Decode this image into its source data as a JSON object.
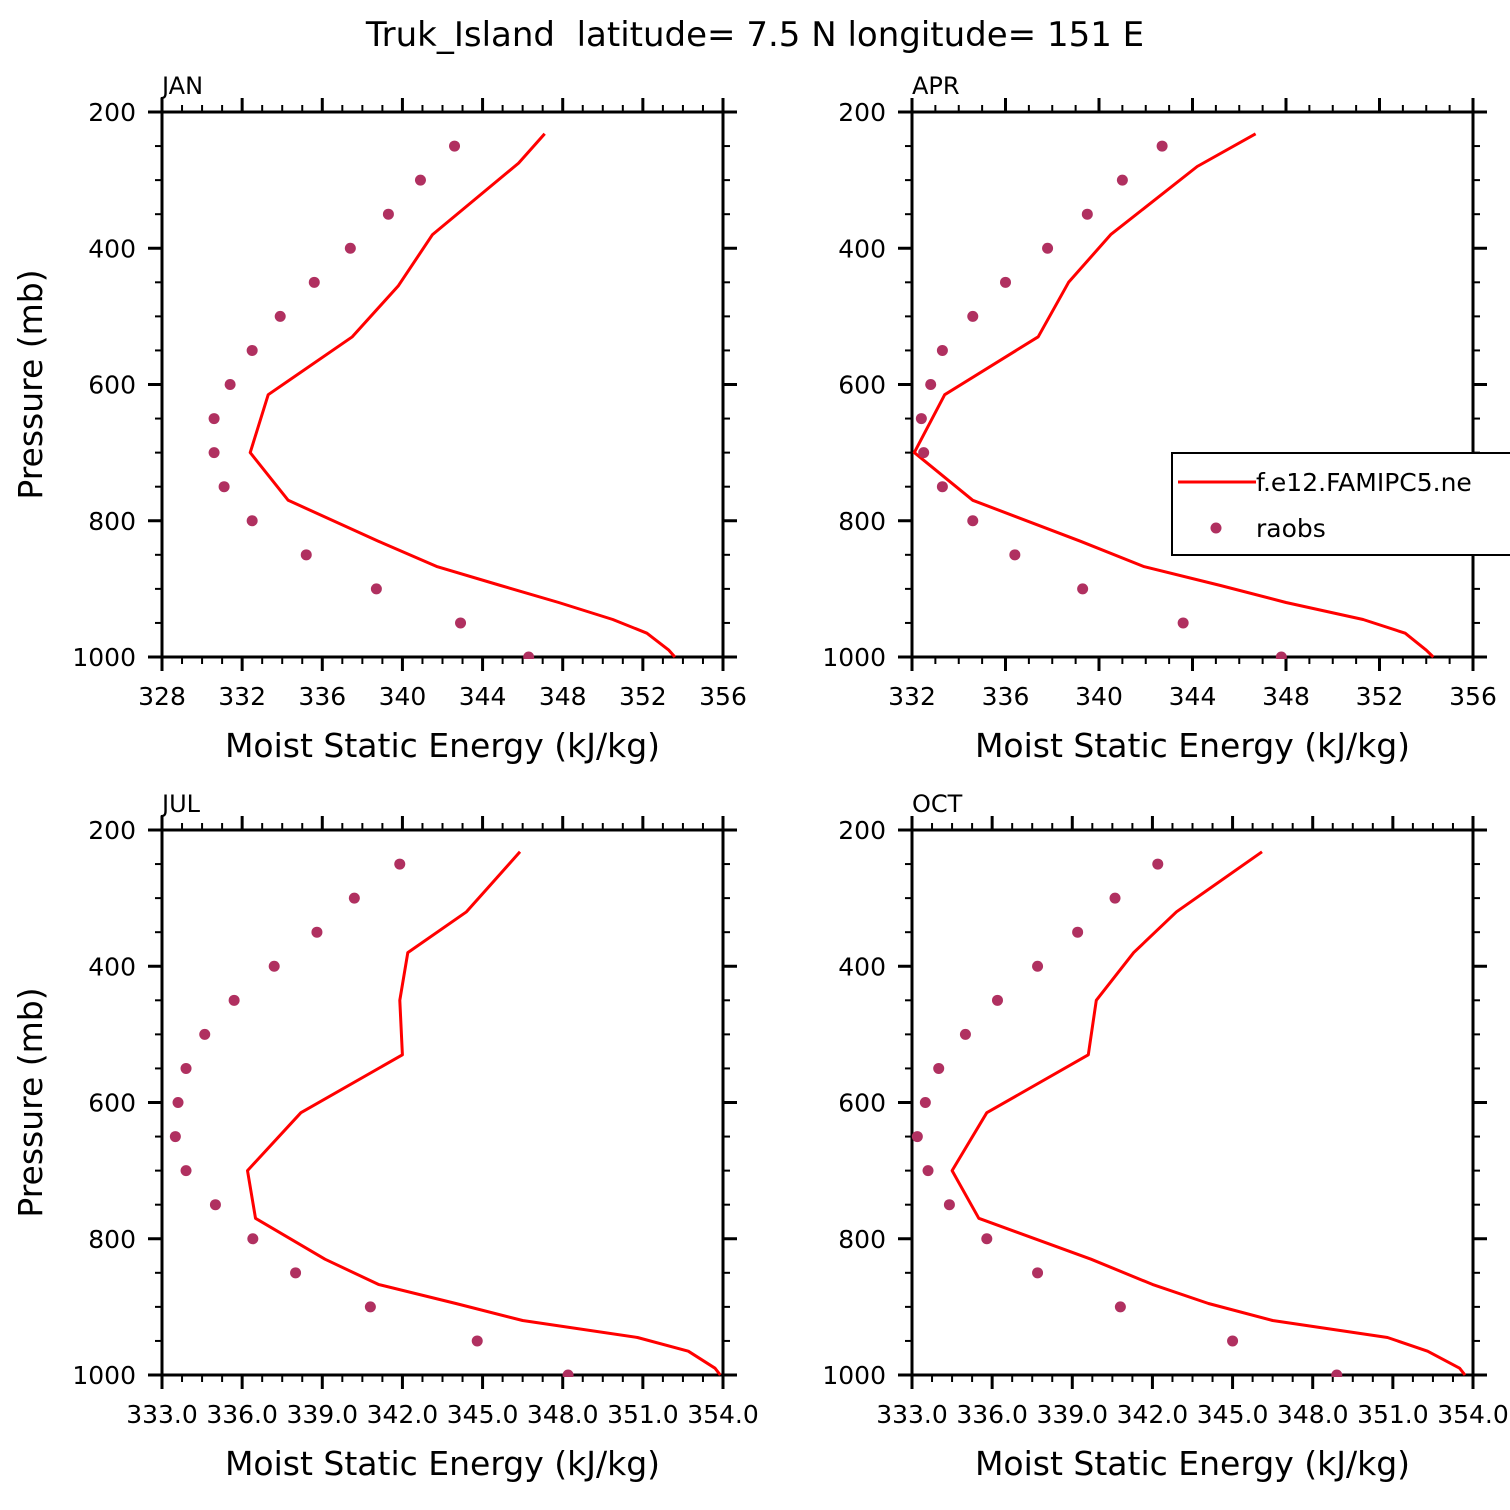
{
  "figure": {
    "title": "Truk_Island  latitude= 7.5 N longitude= 151 E"
  },
  "legend": {
    "model_label": "f.e12.FAMIPC5.ne",
    "obs_label": "raobs",
    "model_color": "#ff0000",
    "obs_color": "#b03060"
  },
  "chart_data": [
    {
      "type": "line",
      "title": "JAN",
      "xlabel": "Moist Static Energy (kJ/kg)",
      "ylabel": "Pressure (mb)",
      "xlim": [
        328,
        356
      ],
      "ylim": [
        1000,
        200
      ],
      "xticks": [
        328,
        332,
        336,
        340,
        344,
        348,
        352,
        356
      ],
      "xtick_labels": [
        "328",
        "332",
        "336",
        "340",
        "344",
        "348",
        "352",
        "356"
      ],
      "yticks": [
        200,
        400,
        600,
        800,
        1000
      ],
      "ytick_labels": [
        "200",
        "400",
        "600",
        "800",
        "1000"
      ],
      "series": [
        {
          "name": "f.e12.FAMIPC5.ne",
          "style": "line",
          "color": "#ff0000",
          "x": [
            353.6,
            353.3,
            352.2,
            350.5,
            347.8,
            344.9,
            341.7,
            338.8,
            334.3,
            332.4,
            333.3,
            337.5,
            339.8,
            341.5,
            345.8,
            347.1
          ],
          "y": [
            1000,
            990,
            965,
            945,
            920,
            895,
            867,
            830,
            770,
            700,
            615,
            530,
            455,
            380,
            275,
            232
          ]
        },
        {
          "name": "raobs",
          "style": "markers",
          "color": "#b03060",
          "x": [
            346.3,
            342.9,
            338.7,
            335.2,
            332.5,
            331.1,
            330.6,
            330.6,
            331.4,
            332.5,
            333.9,
            335.6,
            337.4,
            339.3,
            340.9,
            342.6
          ],
          "y": [
            1000,
            950,
            900,
            850,
            800,
            750,
            700,
            650,
            600,
            550,
            500,
            450,
            400,
            350,
            300,
            250
          ]
        }
      ]
    },
    {
      "type": "line",
      "title": "APR",
      "xlabel": "Moist Static Energy (kJ/kg)",
      "ylabel": "",
      "xlim": [
        332,
        356
      ],
      "ylim": [
        1000,
        200
      ],
      "xticks": [
        332,
        336,
        340,
        344,
        348,
        352,
        356
      ],
      "xtick_labels": [
        "332",
        "336",
        "340",
        "344",
        "348",
        "352",
        "356"
      ],
      "yticks": [
        200,
        400,
        600,
        800,
        1000
      ],
      "ytick_labels": [
        "200",
        "400",
        "600",
        "800",
        "1000"
      ],
      "series": [
        {
          "name": "f.e12.FAMIPC5.ne",
          "style": "line",
          "color": "#ff0000",
          "x": [
            354.3,
            354.0,
            353.1,
            351.3,
            348.0,
            345.2,
            341.9,
            339.2,
            334.6,
            332.1,
            333.4,
            337.4,
            338.7,
            340.5,
            344.2,
            346.7
          ],
          "y": [
            1000,
            990,
            965,
            945,
            920,
            895,
            867,
            830,
            770,
            700,
            615,
            530,
            450,
            380,
            280,
            232
          ]
        },
        {
          "name": "raobs",
          "style": "markers",
          "color": "#b03060",
          "x": [
            347.8,
            343.6,
            339.3,
            336.4,
            334.6,
            333.3,
            332.5,
            332.4,
            332.8,
            333.3,
            334.6,
            336.0,
            337.8,
            339.5,
            341.0,
            342.7
          ],
          "y": [
            1000,
            950,
            900,
            850,
            800,
            750,
            700,
            650,
            600,
            550,
            500,
            450,
            400,
            350,
            300,
            250
          ]
        }
      ]
    },
    {
      "type": "line",
      "title": "JUL",
      "xlabel": "Moist Static Energy (kJ/kg)",
      "ylabel": "Pressure (mb)",
      "xlim": [
        333.0,
        354.0
      ],
      "ylim": [
        1000,
        200
      ],
      "xticks": [
        333.0,
        336.0,
        339.0,
        342.0,
        345.0,
        348.0,
        351.0,
        354.0
      ],
      "xtick_labels": [
        "333.0",
        "336.0",
        "339.0",
        "342.0",
        "345.0",
        "348.0",
        "351.0",
        "354.0"
      ],
      "yticks": [
        200,
        400,
        600,
        800,
        1000
      ],
      "ytick_labels": [
        "200",
        "400",
        "600",
        "800",
        "1000"
      ],
      "series": [
        {
          "name": "f.e12.FAMIPC5.ne",
          "style": "line",
          "color": "#ff0000",
          "x": [
            353.9,
            353.7,
            352.7,
            350.8,
            346.5,
            344.0,
            341.1,
            339.1,
            336.5,
            336.2,
            338.2,
            342.0,
            341.9,
            342.2,
            344.4,
            346.4
          ],
          "y": [
            1000,
            990,
            965,
            945,
            920,
            895,
            867,
            830,
            770,
            700,
            615,
            530,
            450,
            380,
            320,
            232
          ]
        },
        {
          "name": "raobs",
          "style": "markers",
          "color": "#b03060",
          "x": [
            348.2,
            344.8,
            340.8,
            338.0,
            336.4,
            335.0,
            333.9,
            333.5,
            333.6,
            333.9,
            334.6,
            335.7,
            337.2,
            338.8,
            340.2,
            341.9
          ],
          "y": [
            1000,
            950,
            900,
            850,
            800,
            750,
            700,
            650,
            600,
            550,
            500,
            450,
            400,
            350,
            300,
            250
          ]
        }
      ]
    },
    {
      "type": "line",
      "title": "OCT",
      "xlabel": "Moist Static Energy (kJ/kg)",
      "ylabel": "",
      "xlim": [
        333.0,
        354.0
      ],
      "ylim": [
        1000,
        200
      ],
      "xticks": [
        333.0,
        336.0,
        339.0,
        342.0,
        345.0,
        348.0,
        351.0,
        354.0
      ],
      "xtick_labels": [
        "333.0",
        "336.0",
        "339.0",
        "342.0",
        "345.0",
        "348.0",
        "351.0",
        "354.0"
      ],
      "yticks": [
        200,
        400,
        600,
        800,
        1000
      ],
      "ytick_labels": [
        "200",
        "400",
        "600",
        "800",
        "1000"
      ],
      "series": [
        {
          "name": "f.e12.FAMIPC5.ne",
          "style": "line",
          "color": "#ff0000",
          "x": [
            353.7,
            353.5,
            352.3,
            350.8,
            346.5,
            344.1,
            342.0,
            339.7,
            335.5,
            334.5,
            335.8,
            339.6,
            339.9,
            341.3,
            342.9,
            346.1
          ],
          "y": [
            1000,
            990,
            965,
            945,
            920,
            895,
            867,
            830,
            770,
            700,
            615,
            530,
            450,
            380,
            320,
            232
          ]
        },
        {
          "name": "raobs",
          "style": "markers",
          "color": "#b03060",
          "x": [
            348.9,
            345.0,
            340.8,
            337.7,
            335.8,
            334.4,
            333.6,
            333.2,
            333.5,
            334.0,
            335.0,
            336.2,
            337.7,
            339.2,
            340.6,
            342.2
          ],
          "y": [
            1000,
            950,
            900,
            850,
            800,
            750,
            700,
            650,
            600,
            550,
            500,
            450,
            400,
            350,
            300,
            250
          ]
        }
      ]
    }
  ]
}
